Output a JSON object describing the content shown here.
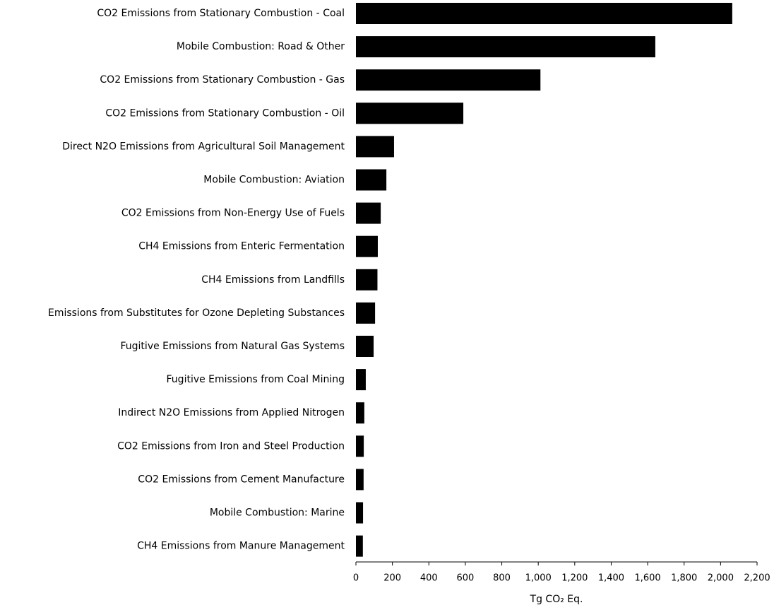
{
  "chart_data": {
    "type": "bar",
    "orientation": "horizontal",
    "categories": [
      "CO2 Emissions from Stationary Combustion - Coal",
      "Mobile Combustion: Road & Other",
      "CO2 Emissions from Stationary Combustion - Gas",
      "CO2 Emissions from Stationary Combustion - Oil",
      "Direct N2O Emissions from Agricultural Soil Management",
      "Mobile Combustion: Aviation",
      "CO2 Emissions from Non-Energy Use of Fuels",
      "CH4 Emissions from Enteric Fermentation",
      "CH4 Emissions from Landfills",
      "Emissions from Substitutes for Ozone Depleting Substances",
      "Fugitive Emissions from Natural Gas Systems",
      "Fugitive Emissions from Coal Mining",
      "Indirect N2O Emissions from Applied Nitrogen",
      "CO2 Emissions from Iron and Steel Production",
      "CO2 Emissions from Cement Manufacture",
      "Mobile Combustion: Marine",
      "CH4 Emissions from Manure Management"
    ],
    "values": [
      2064,
      1642,
      1012,
      589,
      209,
      167,
      136,
      120,
      118,
      105,
      97,
      54,
      46,
      43,
      42,
      39,
      38
    ],
    "color": "#000000",
    "xlabel": "Tg CO₂ Eq.",
    "xlim": [
      0,
      2200
    ],
    "xticks": [
      0,
      200,
      400,
      600,
      800,
      {
        "value": 1000,
        "label": "1,000"
      },
      {
        "value": 1200,
        "label": "1,200"
      },
      {
        "value": 1400,
        "label": "1,400"
      },
      {
        "value": 1600,
        "label": "1,600"
      },
      {
        "value": 1800,
        "label": "1,800"
      },
      {
        "value": 2000,
        "label": "2,000"
      },
      {
        "value": 2200,
        "label": "2,200"
      }
    ],
    "grid": false
  }
}
